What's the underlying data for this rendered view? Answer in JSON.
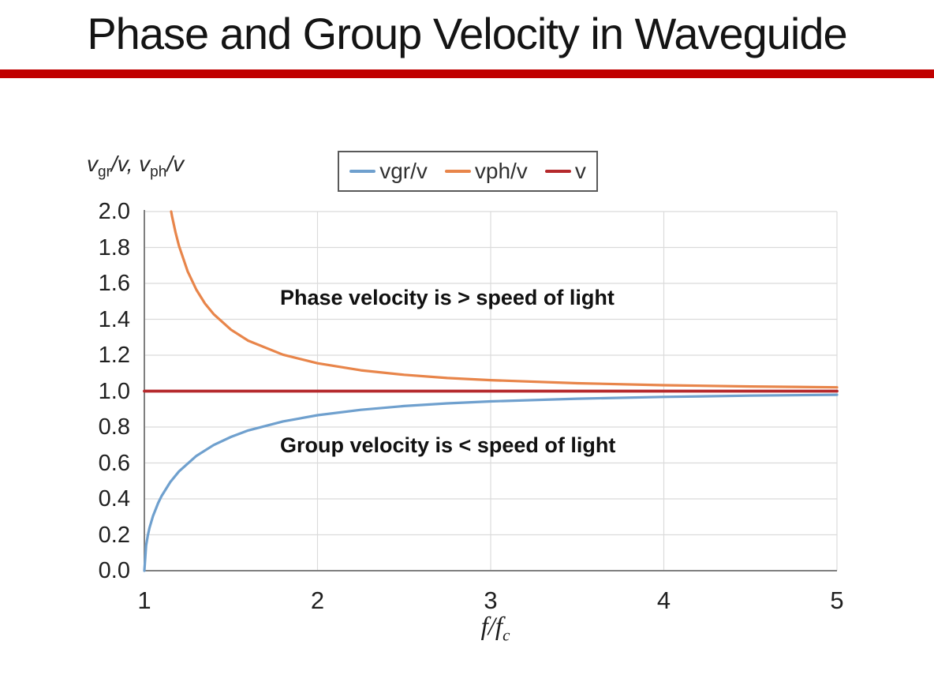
{
  "slide": {
    "title": "Phase and Group Velocity in Waveguide",
    "accent_bar_color": "#C00000"
  },
  "chart": {
    "y_axis_title": {
      "v1": "v",
      "sub1": "gr",
      "mid": "/v, ",
      "v2": "v",
      "sub2": "ph",
      "tail": "/v"
    },
    "x_axis_title": {
      "base": "f/f",
      "sub": "c"
    },
    "annotations": {
      "phase": "Phase velocity is > speed of light",
      "group": "Group velocity is < speed of light"
    },
    "legend": {
      "items": [
        {
          "label": "vgr/v",
          "color": "#6FA0CE"
        },
        {
          "label": "vph/v",
          "color": "#E8854A"
        },
        {
          "label": "v",
          "color": "#B5292C"
        }
      ]
    }
  },
  "chart_data": {
    "type": "line",
    "title": "",
    "xlabel": "f/f_c",
    "ylabel": "vgr/v, vph/v",
    "xlim": [
      1,
      5
    ],
    "ylim": [
      0,
      2
    ],
    "x_ticks": [
      "1",
      "2",
      "3",
      "4",
      "5"
    ],
    "y_ticks": [
      "0.0",
      "0.2",
      "0.4",
      "0.6",
      "0.8",
      "1.0",
      "1.2",
      "1.4",
      "1.6",
      "1.8",
      "2.0"
    ],
    "grid": true,
    "legend_position": "top",
    "grid_color": "#DBDBDB",
    "axis_color": "#7F7F7F",
    "series": [
      {
        "name": "vgr/v",
        "color": "#6FA0CE",
        "width": 3.2,
        "points": [
          [
            1,
            0
          ],
          [
            1.01,
            0.14
          ],
          [
            1.02,
            0.197
          ],
          [
            1.03,
            0.24
          ],
          [
            1.05,
            0.305
          ],
          [
            1.08,
            0.378
          ],
          [
            1.1,
            0.417
          ],
          [
            1.15,
            0.494
          ],
          [
            1.2,
            0.553
          ],
          [
            1.3,
            0.639
          ],
          [
            1.4,
            0.7
          ],
          [
            1.5,
            0.745
          ],
          [
            1.6,
            0.781
          ],
          [
            1.8,
            0.831
          ],
          [
            2,
            0.866
          ],
          [
            2.25,
            0.896
          ],
          [
            2.5,
            0.917
          ],
          [
            2.75,
            0.932
          ],
          [
            3,
            0.943
          ],
          [
            3.5,
            0.958
          ],
          [
            4,
            0.968
          ],
          [
            4.5,
            0.975
          ],
          [
            5,
            0.98
          ]
        ]
      },
      {
        "name": "vph/v",
        "color": "#E8854A",
        "width": 3.2,
        "points": [
          [
            1.1547,
            2.0
          ],
          [
            1.16,
            1.973
          ],
          [
            1.18,
            1.884
          ],
          [
            1.2,
            1.809
          ],
          [
            1.25,
            1.667
          ],
          [
            1.3,
            1.565
          ],
          [
            1.35,
            1.488
          ],
          [
            1.4,
            1.429
          ],
          [
            1.5,
            1.342
          ],
          [
            1.6,
            1.281
          ],
          [
            1.8,
            1.203
          ],
          [
            2,
            1.155
          ],
          [
            2.25,
            1.116
          ],
          [
            2.5,
            1.091
          ],
          [
            2.75,
            1.073
          ],
          [
            3,
            1.061
          ],
          [
            3.5,
            1.044
          ],
          [
            4,
            1.033
          ],
          [
            4.5,
            1.026
          ],
          [
            5,
            1.021
          ]
        ]
      },
      {
        "name": "v",
        "color": "#B5292C",
        "width": 3.8,
        "points": [
          [
            1,
            1
          ],
          [
            5,
            1
          ]
        ]
      }
    ]
  }
}
